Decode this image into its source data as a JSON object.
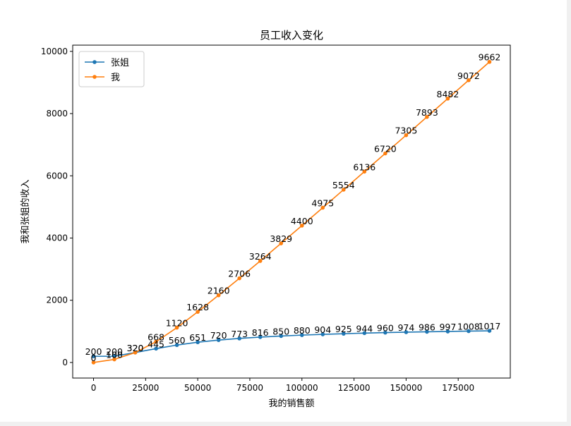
{
  "chart_data": {
    "type": "line",
    "title": "员工收入变化",
    "xlabel": "我的销售额",
    "ylabel": "我和张姐的收入",
    "xlim": [
      -10000,
      200000
    ],
    "ylim": [
      -500,
      10200
    ],
    "xticks": [
      0,
      25000,
      50000,
      75000,
      100000,
      125000,
      150000,
      175000
    ],
    "yticks": [
      0,
      2000,
      4000,
      6000,
      8000,
      10000
    ],
    "grid": false,
    "legend_position": "top-left",
    "x": [
      0,
      10000,
      20000,
      30000,
      40000,
      50000,
      60000,
      70000,
      80000,
      90000,
      100000,
      110000,
      120000,
      130000,
      140000,
      150000,
      160000,
      170000,
      180000,
      190000
    ],
    "series": [
      {
        "name": "张姐",
        "color": "#1f77b4",
        "values": [
          200,
          200,
          320,
          445,
          560,
          651,
          720,
          773,
          816,
          850,
          880,
          904,
          925,
          944,
          960,
          974,
          986,
          997,
          1008,
          1017
        ]
      },
      {
        "name": "我",
        "color": "#ff7f0e",
        "values": [
          0,
          100,
          320,
          668,
          1120,
          1628,
          2160,
          2706,
          3264,
          3829,
          4400,
          4975,
          5554,
          6136,
          6720,
          7305,
          7893,
          8482,
          9072,
          9662
        ]
      }
    ]
  }
}
